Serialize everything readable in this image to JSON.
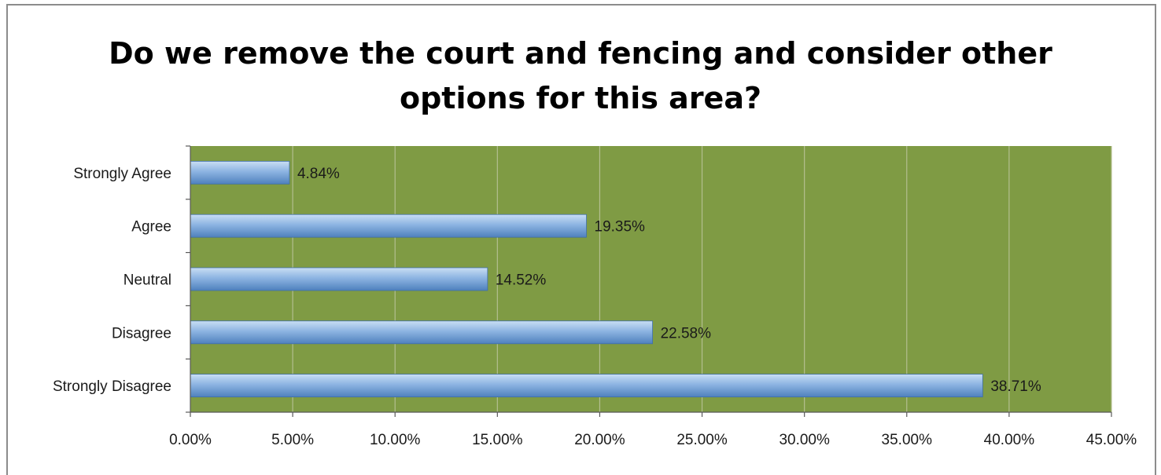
{
  "chart_data": {
    "type": "bar",
    "orientation": "horizontal",
    "title": "Do we remove the court and fencing and consider other options for this area?",
    "title_lines": [
      "Do we remove the court and fencing and consider other",
      "options for this area?"
    ],
    "categories": [
      "Strongly Agree",
      "Agree",
      "Neutral",
      "Disagree",
      "Strongly Disagree"
    ],
    "values": [
      4.84,
      19.35,
      14.52,
      22.58,
      38.71
    ],
    "value_labels": [
      "4.84%",
      "19.35%",
      "14.52%",
      "22.58%",
      "38.71%"
    ],
    "xlim": [
      0,
      45
    ],
    "x_ticks": [
      0,
      5,
      10,
      15,
      20,
      25,
      30,
      35,
      40,
      45
    ],
    "x_tick_labels": [
      "0.00%",
      "5.00%",
      "10.00%",
      "15.00%",
      "20.00%",
      "25.00%",
      "30.00%",
      "35.00%",
      "40.00%",
      "45.00%"
    ],
    "xlabel": "",
    "ylabel": "",
    "grid": true,
    "legend": "none",
    "colors": {
      "plot_background": "#7f9b44",
      "gridline": "#b3bf8f",
      "bar_light": "#c9def4",
      "bar_mid": "#8db4e2",
      "bar_dark": "#4f81bd",
      "axis": "#595959"
    }
  }
}
